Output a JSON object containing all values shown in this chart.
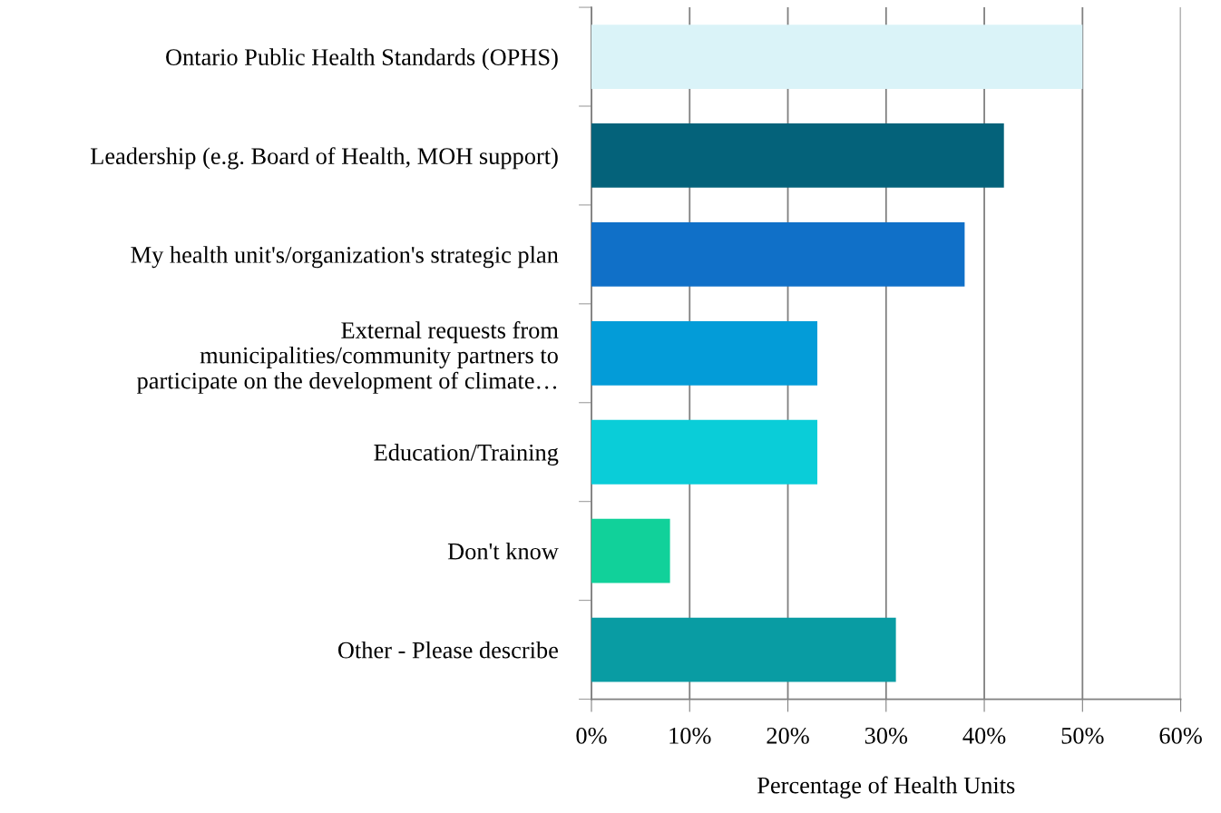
{
  "chart_data": {
    "type": "bar",
    "orientation": "horizontal",
    "xlabel": "Percentage of Health Units",
    "categories": [
      "Ontario Public Health Standards (OPHS)",
      "Leadership (e.g. Board of Health, MOH support)",
      "My health unit's/organization's strategic plan",
      "External requests from\nmunicipalities/community partners to\nparticipate on the development of climate…",
      "Education/Training",
      "Don't know",
      "Other - Please describe"
    ],
    "values": [
      50,
      42,
      38,
      23,
      23,
      8,
      31
    ],
    "colors": [
      "#daf3f8",
      "#04627a",
      "#1070c8",
      "#039cd8",
      "#0acdd8",
      "#11d19a",
      "#099ca3"
    ],
    "xlim": [
      0,
      60
    ],
    "xticks": [
      {
        "value": 0,
        "label": "0%"
      },
      {
        "value": 10,
        "label": "10%"
      },
      {
        "value": 20,
        "label": "20%"
      },
      {
        "value": 30,
        "label": "30%"
      },
      {
        "value": 40,
        "label": "40%"
      },
      {
        "value": 50,
        "label": "50%"
      },
      {
        "value": 60,
        "label": "60%"
      }
    ],
    "grid": "x",
    "legend": false
  }
}
